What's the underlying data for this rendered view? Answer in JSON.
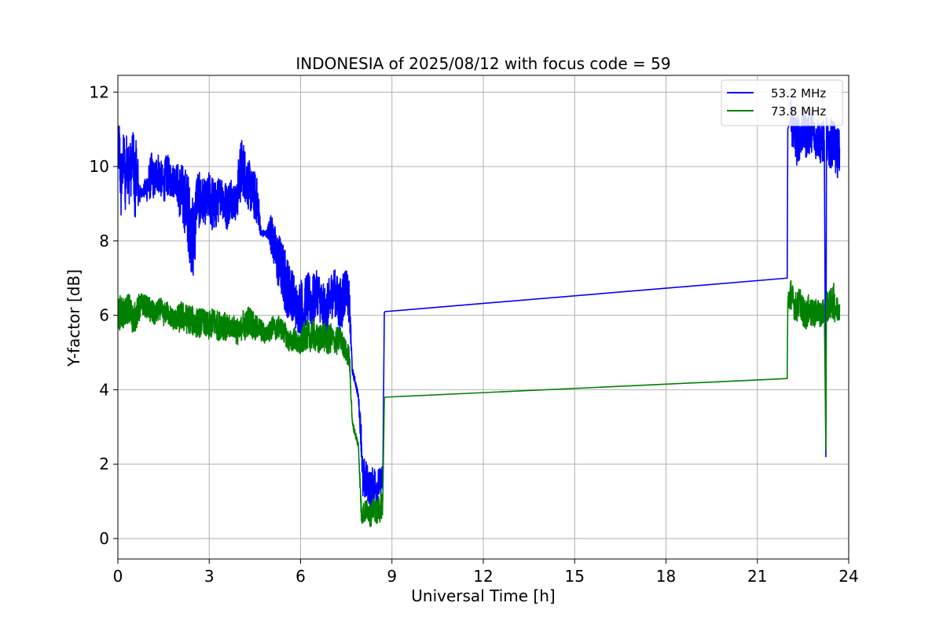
{
  "chart_data": {
    "type": "line",
    "title": "INDONESIA of 2025/08/12 with focus code = 59",
    "xlabel": "Universal Time [h]",
    "ylabel": "Y-factor [dB]",
    "xlim": [
      0,
      24
    ],
    "ylim": [
      -0.55,
      12.45
    ],
    "xticks": [
      0,
      3,
      6,
      9,
      12,
      15,
      18,
      21,
      24
    ],
    "yticks": [
      0,
      2,
      4,
      6,
      8,
      10,
      12
    ],
    "grid": true,
    "legend_position": "top-right",
    "series": [
      {
        "name": "53.2 MHz",
        "color": "#0000ff",
        "style": "noisy",
        "x": [
          0,
          0.05,
          0.1,
          0.15,
          0.2,
          0.25,
          0.3,
          0.35,
          0.4,
          0.45,
          0.5,
          0.55,
          0.6,
          0.65,
          0.7,
          0.75,
          0.8,
          1.0,
          1.1,
          1.2,
          1.3,
          1.4,
          1.5,
          1.6,
          1.7,
          1.8,
          1.9,
          2.0,
          2.1,
          2.2,
          2.3,
          2.4,
          2.5,
          2.6,
          2.7,
          2.8,
          2.9,
          3.0,
          3.1,
          3.2,
          3.3,
          3.4,
          3.5,
          3.6,
          3.7,
          3.8,
          3.9,
          4.0,
          4.1,
          4.2,
          4.3,
          4.4,
          4.5,
          4.6,
          4.7,
          4.8,
          4.9,
          5.0,
          5.1,
          5.2,
          5.3,
          5.4,
          5.5,
          5.6,
          5.7,
          5.8,
          5.9,
          6.0,
          6.1,
          6.2,
          6.3,
          6.4,
          6.5,
          6.6,
          6.7,
          6.8,
          6.9,
          7.0,
          7.1,
          7.2,
          7.3,
          7.4,
          7.5,
          7.6,
          7.7,
          7.8,
          7.9,
          8.0,
          8.05,
          8.1,
          8.2,
          8.3,
          8.4,
          8.5,
          8.6,
          8.7,
          8.75,
          8.78,
          21.98,
          22.0,
          22.1,
          22.2,
          22.3,
          22.4,
          22.5,
          22.6,
          22.7,
          22.8,
          22.9,
          23.0,
          23.1,
          23.2,
          23.25,
          23.27,
          23.3,
          23.4,
          23.5,
          23.6,
          23.7
        ],
        "y": [
          10.2,
          10.6,
          9.4,
          9.9,
          10.3,
          9.5,
          10.4,
          9.7,
          10.1,
          9.8,
          10.6,
          9.3,
          10.1,
          9.6,
          9.2,
          9.3,
          9.3,
          9.5,
          9.8,
          9.6,
          9.9,
          9.7,
          9.5,
          9.8,
          9.7,
          9.6,
          9.7,
          9.4,
          9.2,
          9.1,
          8.8,
          8.2,
          8.0,
          9.3,
          9.0,
          9.1,
          9.0,
          9.2,
          9.0,
          8.9,
          9.1,
          9.3,
          9.0,
          8.9,
          9.2,
          9.1,
          9.0,
          9.8,
          10.0,
          9.7,
          9.5,
          9.3,
          9.2,
          9.0,
          8.2,
          8.2,
          8.2,
          8.3,
          8.0,
          7.6,
          7.4,
          7.2,
          6.9,
          6.7,
          6.6,
          6.4,
          6.1,
          6.3,
          6.0,
          6.5,
          6.4,
          6.3,
          6.6,
          6.6,
          6.2,
          6.0,
          6.1,
          6.5,
          6.7,
          6.4,
          6.2,
          6.5,
          6.8,
          6.3,
          4.5,
          4.2,
          3.8,
          2.6,
          1.4,
          1.6,
          1.5,
          1.3,
          1.5,
          1.4,
          1.5,
          1.6,
          6.08,
          6.1,
          7.0,
          11.0,
          11.3,
          10.9,
          10.7,
          10.8,
          11.0,
          10.8,
          10.9,
          11.0,
          10.7,
          10.8,
          10.6,
          10.7,
          2.2,
          10.8,
          10.5,
          10.6,
          10.7,
          10.3,
          10.5
        ],
        "noise": [
          0.7,
          0.8,
          1.0,
          0.6,
          0.8,
          0.9,
          0.7,
          1.2,
          0.6,
          0.8,
          0.5,
          1.4,
          0.6,
          0.9,
          0.3,
          0.2,
          0.1,
          0.5,
          0.6,
          0.5,
          0.6,
          0.5,
          0.5,
          0.6,
          0.5,
          0.5,
          0.4,
          0.7,
          0.9,
          0.9,
          1.1,
          1.0,
          1.2,
          0.7,
          0.8,
          0.6,
          0.6,
          0.7,
          0.8,
          0.7,
          0.6,
          0.5,
          0.7,
          0.6,
          0.6,
          0.5,
          0.5,
          0.9,
          0.8,
          0.7,
          0.7,
          0.6,
          0.7,
          0.6,
          0.1,
          0.1,
          0.1,
          0.5,
          0.6,
          0.7,
          0.8,
          0.8,
          0.9,
          0.8,
          0.7,
          0.7,
          0.6,
          0.8,
          0.8,
          0.7,
          0.7,
          0.8,
          0.6,
          0.6,
          0.7,
          0.8,
          0.8,
          0.7,
          0.6,
          0.7,
          0.8,
          0.8,
          0.5,
          0.6,
          0.1,
          0.1,
          0.1,
          0.5,
          0.6,
          0.6,
          0.5,
          0.5,
          0.5,
          0.5,
          0.4,
          0.4,
          0.0,
          0.0,
          0.0,
          0.0,
          0.7,
          0.6,
          0.7,
          0.6,
          0.6,
          0.6,
          0.6,
          0.6,
          0.5,
          0.6,
          0.6,
          0.6,
          0.0,
          0.6,
          0.6,
          0.7,
          0.6,
          0.7,
          0.6
        ]
      },
      {
        "name": "73.8 MHz",
        "color": "#008000",
        "style": "noisy",
        "x": [
          0,
          0.1,
          0.2,
          0.3,
          0.4,
          0.5,
          0.6,
          0.7,
          0.8,
          1.0,
          1.1,
          1.2,
          1.3,
          1.4,
          1.5,
          1.6,
          1.7,
          1.8,
          1.9,
          2.0,
          2.1,
          2.2,
          2.3,
          2.4,
          2.5,
          2.6,
          2.7,
          2.8,
          2.9,
          3.0,
          3.1,
          3.2,
          3.3,
          3.4,
          3.5,
          3.6,
          3.7,
          3.8,
          3.9,
          4.0,
          4.1,
          4.2,
          4.3,
          4.4,
          4.5,
          4.6,
          4.7,
          4.8,
          4.9,
          5.0,
          5.1,
          5.2,
          5.3,
          5.4,
          5.5,
          5.6,
          5.7,
          5.8,
          5.9,
          6.0,
          6.1,
          6.2,
          6.3,
          6.4,
          6.5,
          6.6,
          6.7,
          6.8,
          6.9,
          7.0,
          7.1,
          7.2,
          7.3,
          7.4,
          7.5,
          7.6,
          7.7,
          7.8,
          7.9,
          8.0,
          8.05,
          8.1,
          8.2,
          8.3,
          8.4,
          8.5,
          8.6,
          8.7,
          8.75,
          8.78,
          21.98,
          22.0,
          22.1,
          22.2,
          22.3,
          22.4,
          22.5,
          22.6,
          22.7,
          22.8,
          22.9,
          23.0,
          23.1,
          23.2,
          23.25,
          23.27,
          23.3,
          23.4,
          23.5,
          23.6,
          23.7
        ],
        "y": [
          6.0,
          6.1,
          6.0,
          6.2,
          6.1,
          5.9,
          6.0,
          6.2,
          6.3,
          6.2,
          6.1,
          6.0,
          6.1,
          6.2,
          6.0,
          6.1,
          6.0,
          5.9,
          5.9,
          5.9,
          6.0,
          5.9,
          5.9,
          5.9,
          5.8,
          5.8,
          5.8,
          5.9,
          5.7,
          5.7,
          5.8,
          5.8,
          5.7,
          5.8,
          5.7,
          5.6,
          5.7,
          5.7,
          5.6,
          5.5,
          5.8,
          5.7,
          5.9,
          5.8,
          5.6,
          5.7,
          5.6,
          5.5,
          5.5,
          5.6,
          5.7,
          5.6,
          5.7,
          5.6,
          5.5,
          5.3,
          5.3,
          5.4,
          5.2,
          5.2,
          5.4,
          5.5,
          5.4,
          5.5,
          5.4,
          5.3,
          5.5,
          5.4,
          5.3,
          5.4,
          5.3,
          5.3,
          5.4,
          5.2,
          5.0,
          4.9,
          3.1,
          2.8,
          2.5,
          0.6,
          0.7,
          0.7,
          0.8,
          0.6,
          0.8,
          0.7,
          0.8,
          1.0,
          3.77,
          3.8,
          4.3,
          6.3,
          6.6,
          6.3,
          6.2,
          6.4,
          6.1,
          6.0,
          6.2,
          6.0,
          6.1,
          6.1,
          6.0,
          6.2,
          2.4,
          6.5,
          6.2,
          6.3,
          6.4,
          6.1,
          6.3
        ],
        "noise": [
          0.4,
          0.5,
          0.4,
          0.4,
          0.5,
          0.4,
          0.4,
          0.4,
          0.3,
          0.3,
          0.4,
          0.3,
          0.3,
          0.3,
          0.3,
          0.3,
          0.3,
          0.3,
          0.3,
          0.4,
          0.4,
          0.4,
          0.4,
          0.4,
          0.4,
          0.4,
          0.4,
          0.3,
          0.4,
          0.4,
          0.4,
          0.4,
          0.4,
          0.4,
          0.4,
          0.4,
          0.3,
          0.3,
          0.4,
          0.3,
          0.4,
          0.4,
          0.4,
          0.4,
          0.4,
          0.3,
          0.3,
          0.3,
          0.2,
          0.3,
          0.3,
          0.3,
          0.3,
          0.3,
          0.3,
          0.3,
          0.3,
          0.3,
          0.3,
          0.3,
          0.4,
          0.4,
          0.4,
          0.4,
          0.4,
          0.4,
          0.4,
          0.4,
          0.4,
          0.4,
          0.3,
          0.4,
          0.3,
          0.3,
          0.3,
          0.3,
          0.1,
          0.1,
          0.1,
          0.3,
          0.3,
          0.3,
          0.3,
          0.3,
          0.3,
          0.3,
          0.4,
          0.4,
          0.0,
          0.0,
          0.0,
          0.4,
          0.4,
          0.4,
          0.4,
          0.4,
          0.4,
          0.4,
          0.4,
          0.4,
          0.4,
          0.3,
          0.4,
          0.3,
          0.0,
          0.4,
          0.4,
          0.4,
          0.5,
          0.4,
          0.4
        ]
      }
    ]
  }
}
